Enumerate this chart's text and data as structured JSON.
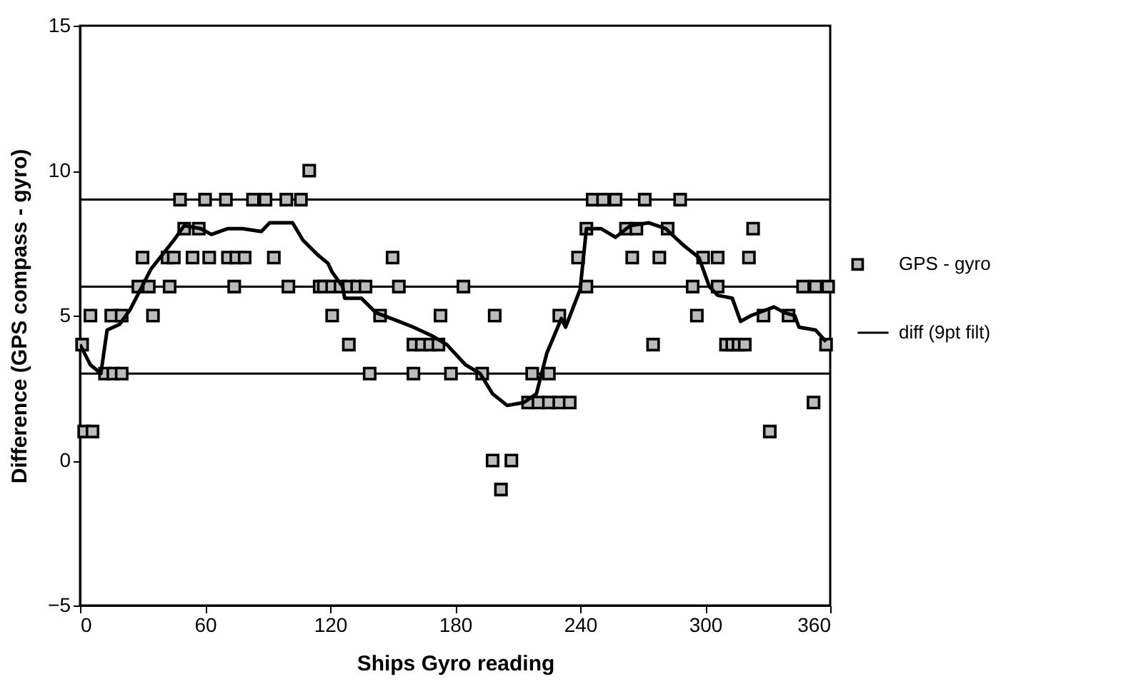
{
  "chart_data": {
    "type": "scatter",
    "xlabel": "Ships Gyro reading",
    "ylabel": "Difference (GPS compass - gyro)",
    "xlim": [
      0,
      360
    ],
    "ylim": [
      -5,
      15
    ],
    "xticks": [
      0,
      60,
      120,
      180,
      240,
      300,
      360
    ],
    "yticks": [
      -5,
      0,
      5,
      10,
      15
    ],
    "grid": false,
    "legend": "right",
    "ref_lines": [
      {
        "axis": "y",
        "value": 3,
        "color": "#000000"
      },
      {
        "axis": "y",
        "value": 6,
        "color": "#000000"
      },
      {
        "axis": "y",
        "value": 9,
        "color": "#000000"
      }
    ],
    "series": [
      {
        "name": "GPS - gyro",
        "marker": "square",
        "color": "#000000",
        "x": [
          1,
          2,
          6,
          5,
          12,
          16,
          20,
          15,
          20,
          28,
          30,
          33,
          35,
          42,
          43,
          45,
          48,
          50,
          54,
          57,
          60,
          62,
          70,
          71,
          74,
          75,
          79,
          83,
          89,
          93,
          99,
          100,
          106,
          110,
          115,
          117,
          121,
          121,
          125,
          129,
          129,
          133,
          137,
          139,
          144,
          150,
          153,
          160,
          160,
          164,
          168,
          172,
          173,
          178,
          184,
          193,
          198,
          199,
          202,
          207,
          215,
          217,
          220,
          225,
          225,
          230,
          230,
          235,
          239,
          243,
          243,
          246,
          251,
          257,
          262,
          265,
          267,
          271,
          275,
          278,
          282,
          288,
          294,
          296,
          299,
          306,
          306,
          310,
          313,
          316,
          319,
          321,
          323,
          328,
          331,
          340,
          347,
          352,
          353,
          358,
          359
        ],
        "values": [
          4,
          1,
          1,
          5,
          3,
          3,
          3,
          5,
          5,
          6,
          7,
          6,
          5,
          7,
          6,
          7,
          9,
          8,
          7,
          8,
          9,
          7,
          9,
          7,
          6,
          7,
          7,
          9,
          9,
          7,
          9,
          6,
          9,
          10,
          6,
          6,
          5,
          6,
          6,
          4,
          6,
          6,
          6,
          3,
          5,
          7,
          6,
          3,
          4,
          4,
          4,
          4,
          5,
          3,
          6,
          3,
          0,
          5,
          -1,
          0,
          2,
          3,
          2,
          2,
          3,
          2,
          5,
          2,
          7,
          8,
          6,
          9,
          9,
          9,
          8,
          7,
          8,
          9,
          4,
          7,
          8,
          9,
          6,
          5,
          7,
          7,
          6,
          4,
          4,
          4,
          4,
          7,
          8,
          5,
          1,
          5,
          6,
          2,
          6,
          4,
          6
        ]
      },
      {
        "name": "diff (9pt filt)",
        "type": "line",
        "marker": "none",
        "line_style": "solid",
        "color": "#000000",
        "x": [
          0,
          5,
          10,
          13,
          19,
          24,
          34,
          45,
          50,
          58,
          63,
          71,
          78,
          87,
          91,
          102,
          107,
          114,
          119,
          121,
          126,
          127,
          135,
          142,
          153,
          160,
          169,
          176,
          185,
          192,
          198,
          205,
          213,
          219,
          224,
          231,
          233,
          240,
          243,
          250,
          257,
          264,
          273,
          281,
          290,
          297,
          302,
          306,
          313,
          317,
          322,
          333,
          338,
          343,
          345,
          353,
          358
        ],
        "values": [
          4,
          3.3,
          3,
          4.5,
          4.7,
          5.2,
          6.6,
          7.6,
          8.1,
          8,
          7.8,
          8,
          8,
          7.9,
          8.2,
          8.2,
          7.6,
          7.1,
          6.8,
          6.5,
          6,
          5.6,
          5.6,
          5.1,
          4.8,
          4.6,
          4.3,
          4,
          3.3,
          3,
          2.3,
          1.9,
          2,
          2.3,
          3.7,
          4.9,
          4.6,
          5.9,
          8,
          8,
          7.7,
          8.1,
          8.2,
          8,
          7.4,
          7,
          6,
          5.7,
          5.6,
          4.8,
          5,
          5.3,
          5.1,
          5,
          4.6,
          4.5,
          4.1
        ]
      }
    ]
  }
}
